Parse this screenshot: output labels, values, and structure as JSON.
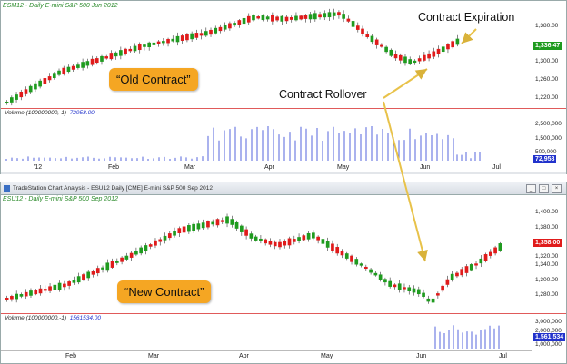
{
  "top_chart": {
    "header": "ESM12 - Daily  E-mini S&P 500 Jun 2012",
    "price_labels": [
      "1,380.00",
      "1,340.00",
      "1,300.00",
      "1,260.00",
      "1,220.00"
    ],
    "last_price": "1,336.47",
    "volume_header": "Volume (100000000,-1)",
    "volume_value": "72958.00",
    "volume_labels": [
      "2,500,000",
      "1,500,000",
      "500,000"
    ],
    "last_volume": "72,958",
    "x_labels": [
      "'12",
      "Feb",
      "Mar",
      "Apr",
      "May",
      "Jun",
      "Jul"
    ]
  },
  "bottom_window": {
    "title": "TradeStation Chart Analysis - ESU12 Daily [CME] E-mini S&P 500 Sep 2012",
    "controls": [
      "_",
      "□",
      "×"
    ]
  },
  "bottom_chart": {
    "header": "ESU12 - Daily  E-mini S&P 500 Sep 2012",
    "price_labels": [
      "1,400.00",
      "1,360.00",
      "1,320.00",
      "1,280.00"
    ],
    "price_labels_b": [
      "1,380.00",
      "1,340.00",
      "1,300.00"
    ],
    "last_price": "1,358.00",
    "volume_header": "Volume (100000000,-1)",
    "volume_value": "1561534.00",
    "volume_labels": [
      "3,000,000",
      "2,000,000",
      "1,000,000"
    ],
    "last_volume": "1,561,534",
    "x_labels": [
      "Feb",
      "Mar",
      "Apr",
      "May",
      "Jun",
      "Jul"
    ]
  },
  "annotations": {
    "old_contract": "“Old Contract”",
    "new_contract": "“New Contract”",
    "rollover": "Contract Rollover",
    "expiration": "Contract Expiration"
  },
  "colors": {
    "up_candle": "#1f9b1f",
    "down_candle": "#e01b1b",
    "volume_bar": "#5566dd",
    "callout": "#f5a623",
    "arrow": "#e8c24a",
    "tag_green": "#1f9b1f",
    "tag_red": "#e01b1b",
    "tag_blue": "#2233cc"
  }
}
